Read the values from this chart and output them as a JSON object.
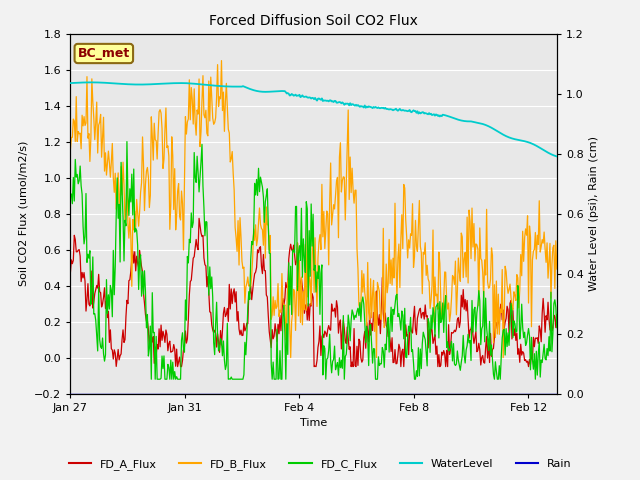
{
  "title": "Forced Diffusion Soil CO2 Flux",
  "ylabel_left": "Soil CO2 Flux (umol/m2/s)",
  "ylabel_right": "Water Level (psi), Rain (cm)",
  "xlabel": "Time",
  "ylim_left": [
    -0.2,
    1.8
  ],
  "ylim_right": [
    0.0,
    1.2
  ],
  "fig_facecolor": "#f0f0f0",
  "plot_bg_color": "#e8e8e8",
  "bc_met_label": "BC_met",
  "bc_met_facecolor": "#ffff99",
  "bc_met_edgecolor": "#8b6914",
  "bc_met_textcolor": "#8b0000",
  "legend_entries": [
    "FD_A_Flux",
    "FD_B_Flux",
    "FD_C_Flux",
    "WaterLevel",
    "Rain"
  ],
  "legend_colors": [
    "#cc0000",
    "#ffa500",
    "#00cc00",
    "#00cccc",
    "#0000cc"
  ],
  "xtick_labels": [
    "Jan 27",
    "Jan 31",
    "Feb 4",
    "Feb 8",
    "Feb 12"
  ],
  "xtick_positions": [
    0,
    4,
    8,
    12,
    16
  ],
  "n_points": 500,
  "water_level_start": 1.035,
  "water_level_end": 0.795,
  "rain_value": 0.0,
  "fd_a_color": "#cc0000",
  "fd_b_color": "#ffa500",
  "fd_c_color": "#00cc00",
  "water_color": "#00cccc",
  "rain_color": "#0000cc"
}
